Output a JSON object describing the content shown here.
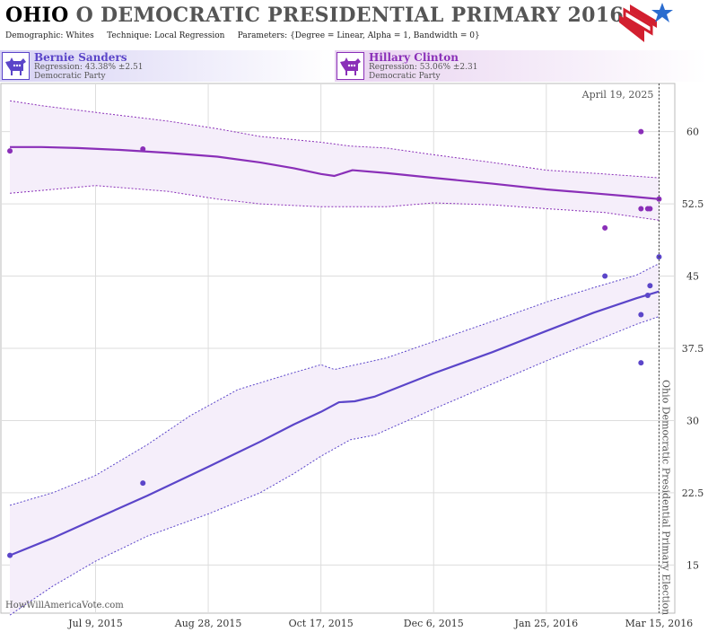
{
  "header": {
    "state": "OHIO",
    "title_rest": "O DEMOCRATIC PRESIDENTIAL PRIMARY 2016",
    "demographic_label": "Demographic:",
    "demographic_value": "Whites",
    "technique_label": "Technique:",
    "technique_value": "Local Regression",
    "parameters_label": "Parameters:",
    "parameters_value": "{Degree = Linear, Alpha = 1, Bandwidth = 0}"
  },
  "candidates": [
    {
      "name": "Bernie Sanders",
      "regression": "Regression: 43.38% ±2.51",
      "party": "Democratic Party",
      "icon": "donkey-icon",
      "color": "#5b45c9"
    },
    {
      "name": "Hillary Clinton",
      "regression": "Regression: 53.06% ±2.31",
      "party": "Democratic Party",
      "icon": "donkey-icon",
      "color": "#8a2fb8"
    }
  ],
  "source": "HowWillAmericaVote.com",
  "chart_data": {
    "type": "line",
    "x_ticks": [
      "Jul 9, 2015",
      "Aug 28, 2015",
      "Oct 17, 2015",
      "Dec 6, 2015",
      "Jan 25, 2016",
      "Mar 15, 2016"
    ],
    "y_ticks": [
      15,
      22.5,
      30,
      37.5,
      45,
      52.5,
      60
    ],
    "ylim": [
      10,
      65
    ],
    "xlim": [
      "2015-05-28",
      "2016-03-22"
    ],
    "event_label": "Ohio Democratic Presidential Primary Election",
    "event_date": "2016-03-15",
    "date_label": "April 19, 2025",
    "series": [
      {
        "name": "Hillary Clinton",
        "color": "#8a2fb8",
        "line": [
          [
            "2015-06-01",
            58.4
          ],
          [
            "2015-06-15",
            58.4
          ],
          [
            "2015-07-01",
            58.3
          ],
          [
            "2015-07-20",
            58.1
          ],
          [
            "2015-08-10",
            57.8
          ],
          [
            "2015-09-01",
            57.4
          ],
          [
            "2015-09-20",
            56.8
          ],
          [
            "2015-10-05",
            56.2
          ],
          [
            "2015-10-17",
            55.6
          ],
          [
            "2015-10-23",
            55.4
          ],
          [
            "2015-10-31",
            56.0
          ],
          [
            "2015-11-15",
            55.7
          ],
          [
            "2015-12-06",
            55.2
          ],
          [
            "2016-01-01",
            54.6
          ],
          [
            "2016-01-25",
            54.0
          ],
          [
            "2016-02-15",
            53.6
          ],
          [
            "2016-03-01",
            53.3
          ],
          [
            "2016-03-15",
            53.0
          ]
        ],
        "upper": [
          [
            "2015-06-01",
            63.2
          ],
          [
            "2015-06-15",
            62.7
          ],
          [
            "2015-07-09",
            62.0
          ],
          [
            "2015-08-10",
            61.1
          ],
          [
            "2015-09-01",
            60.3
          ],
          [
            "2015-09-20",
            59.5
          ],
          [
            "2015-10-17",
            58.9
          ],
          [
            "2015-10-30",
            58.5
          ],
          [
            "2015-11-15",
            58.3
          ],
          [
            "2015-12-06",
            57.6
          ],
          [
            "2016-01-01",
            56.8
          ],
          [
            "2016-01-25",
            56.0
          ],
          [
            "2016-02-20",
            55.6
          ],
          [
            "2016-03-15",
            55.2
          ]
        ],
        "lower": [
          [
            "2015-06-01",
            53.6
          ],
          [
            "2015-07-09",
            54.4
          ],
          [
            "2015-08-10",
            53.8
          ],
          [
            "2015-09-01",
            53.0
          ],
          [
            "2015-09-20",
            52.5
          ],
          [
            "2015-10-17",
            52.2
          ],
          [
            "2015-11-15",
            52.2
          ],
          [
            "2015-12-06",
            52.6
          ],
          [
            "2016-01-01",
            52.4
          ],
          [
            "2016-01-25",
            52.0
          ],
          [
            "2016-02-20",
            51.6
          ],
          [
            "2016-03-15",
            50.8
          ]
        ],
        "points": [
          [
            "2015-06-01",
            58
          ],
          [
            "2015-07-30",
            58.2
          ],
          [
            "2016-02-20",
            50
          ],
          [
            "2016-03-07",
            60
          ],
          [
            "2016-03-07",
            52
          ],
          [
            "2016-03-10",
            52
          ],
          [
            "2016-03-11",
            52
          ],
          [
            "2016-03-15",
            53
          ]
        ]
      },
      {
        "name": "Bernie Sanders",
        "color": "#5b45c9",
        "line": [
          [
            "2015-06-01",
            16.0
          ],
          [
            "2015-06-20",
            17.8
          ],
          [
            "2015-07-09",
            19.8
          ],
          [
            "2015-08-01",
            22.2
          ],
          [
            "2015-08-28",
            25.2
          ],
          [
            "2015-09-20",
            27.8
          ],
          [
            "2015-10-05",
            29.6
          ],
          [
            "2015-10-17",
            30.9
          ],
          [
            "2015-10-25",
            31.9
          ],
          [
            "2015-11-01",
            32.0
          ],
          [
            "2015-11-10",
            32.5
          ],
          [
            "2015-12-06",
            34.9
          ],
          [
            "2016-01-01",
            37.1
          ],
          [
            "2016-01-25",
            39.3
          ],
          [
            "2016-02-15",
            41.2
          ],
          [
            "2016-03-05",
            42.7
          ],
          [
            "2016-03-15",
            43.4
          ]
        ],
        "upper": [
          [
            "2015-06-01",
            21.2
          ],
          [
            "2015-06-20",
            22.5
          ],
          [
            "2015-07-09",
            24.3
          ],
          [
            "2015-08-01",
            27.5
          ],
          [
            "2015-08-20",
            30.5
          ],
          [
            "2015-09-10",
            33.2
          ],
          [
            "2015-10-01",
            34.7
          ],
          [
            "2015-10-17",
            35.8
          ],
          [
            "2015-10-23",
            35.3
          ],
          [
            "2015-11-15",
            36.5
          ],
          [
            "2015-12-06",
            38.2
          ],
          [
            "2016-01-01",
            40.3
          ],
          [
            "2016-01-25",
            42.3
          ],
          [
            "2016-02-15",
            43.8
          ],
          [
            "2016-03-05",
            45.1
          ],
          [
            "2016-03-15",
            46.3
          ]
        ],
        "lower": [
          [
            "2015-06-01",
            9.8
          ],
          [
            "2015-06-20",
            12.8
          ],
          [
            "2015-07-09",
            15.4
          ],
          [
            "2015-08-01",
            18.0
          ],
          [
            "2015-08-28",
            20.3
          ],
          [
            "2015-09-20",
            22.5
          ],
          [
            "2015-10-05",
            24.5
          ],
          [
            "2015-10-17",
            26.3
          ],
          [
            "2015-10-30",
            28.0
          ],
          [
            "2015-11-10",
            28.5
          ],
          [
            "2015-12-06",
            31.2
          ],
          [
            "2016-01-01",
            33.8
          ],
          [
            "2016-01-25",
            36.2
          ],
          [
            "2016-02-15",
            38.2
          ],
          [
            "2016-03-05",
            40.0
          ],
          [
            "2016-03-15",
            40.8
          ]
        ],
        "points": [
          [
            "2015-06-01",
            16
          ],
          [
            "2015-07-30",
            23.5
          ],
          [
            "2016-02-20",
            45
          ],
          [
            "2016-03-07",
            41
          ],
          [
            "2016-03-07",
            36
          ],
          [
            "2016-03-10",
            43
          ],
          [
            "2016-03-11",
            44
          ],
          [
            "2016-03-15",
            47
          ]
        ]
      }
    ]
  },
  "colors": {
    "band_fill": "#f5eefa",
    "grid": "#dddddd",
    "axis_text": "#333333"
  }
}
